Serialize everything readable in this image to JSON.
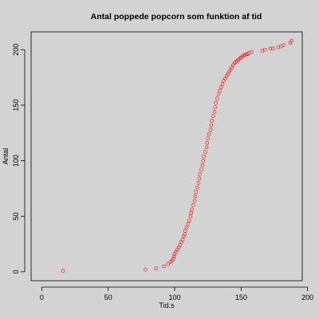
{
  "chart_data": {
    "type": "scatter",
    "title": "Antal poppede popcorn som funktion af tid",
    "xlabel": "Tid.s",
    "ylabel": "Antal",
    "xlim": [
      -8,
      196
    ],
    "ylim": [
      -8,
      216
    ],
    "x_ticks": [
      0,
      50,
      100,
      150,
      200
    ],
    "y_ticks": [
      0,
      50,
      100,
      150,
      200
    ],
    "x_tick_labels": [
      "0",
      "50",
      "100",
      "150",
      "200"
    ],
    "y_tick_labels": [
      "0",
      "50",
      "100",
      "150",
      "200"
    ],
    "grid": false,
    "point_color": "#ff0000",
    "background": "#d3d3d3",
    "series": [
      {
        "x": [
          16,
          78,
          86,
          92,
          95,
          97,
          98,
          99,
          99.5,
          100,
          101,
          102,
          103,
          104,
          105,
          106,
          107,
          107.5,
          108,
          109,
          110,
          111,
          112,
          112.5,
          113,
          114,
          115,
          115.5,
          116,
          117,
          118,
          118.5,
          119,
          120,
          121,
          121.5,
          122,
          123,
          124,
          124.5,
          125,
          126,
          127,
          127.5,
          128,
          129,
          130,
          130.5,
          131,
          132,
          133,
          134,
          135,
          136,
          137,
          138,
          139,
          140,
          141,
          142,
          143,
          144,
          145,
          146,
          147,
          148,
          149,
          150,
          151,
          152,
          153,
          154,
          155,
          156,
          158,
          166,
          168,
          172,
          174,
          178,
          180,
          182,
          187,
          188
        ],
        "y": [
          1,
          2,
          3,
          5,
          7,
          9,
          10,
          12,
          14,
          16,
          18,
          20,
          22,
          24,
          27,
          29,
          32,
          34,
          37,
          40,
          43,
          46,
          50,
          53,
          56,
          60,
          64,
          68,
          72,
          76,
          80,
          84,
          88,
          92,
          96,
          100,
          104,
          108,
          112,
          116,
          120,
          124,
          128,
          132,
          136,
          140,
          144,
          148,
          152,
          156,
          160,
          163,
          166,
          169,
          172,
          174,
          176,
          178,
          180,
          182,
          184,
          186,
          188,
          189,
          190,
          191,
          192,
          193,
          194,
          195,
          195,
          196,
          196,
          197,
          198,
          199,
          200,
          201,
          201,
          202,
          203,
          204,
          206,
          208
        ]
      }
    ]
  }
}
